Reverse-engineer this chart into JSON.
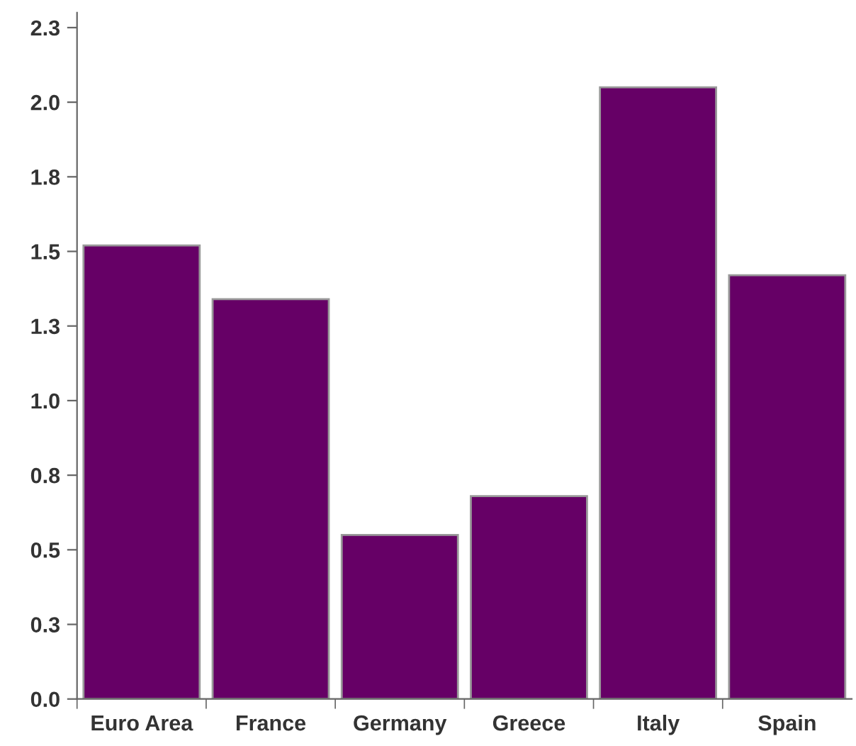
{
  "chart_data": {
    "type": "bar",
    "categories": [
      "Euro Area",
      "France",
      "Germany",
      "Greece",
      "Italy",
      "Spain"
    ],
    "values": [
      1.52,
      1.34,
      0.55,
      0.68,
      2.05,
      1.42
    ],
    "color": "#660066",
    "ylim": [
      0,
      2.3
    ],
    "yticks": [
      {
        "value": 0,
        "label": "0.0"
      },
      {
        "value": 0.25,
        "label": "0.3"
      },
      {
        "value": 0.5,
        "label": "0.5"
      },
      {
        "value": 0.75,
        "label": "0.8"
      },
      {
        "value": 1.0,
        "label": "1.0"
      },
      {
        "value": 1.25,
        "label": "1.3"
      },
      {
        "value": 1.5,
        "label": "1.5"
      },
      {
        "value": 1.75,
        "label": "1.8"
      },
      {
        "value": 2.0,
        "label": "2.0"
      },
      {
        "value": 2.25,
        "label": "2.3"
      }
    ],
    "grid": false,
    "legend": false
  }
}
